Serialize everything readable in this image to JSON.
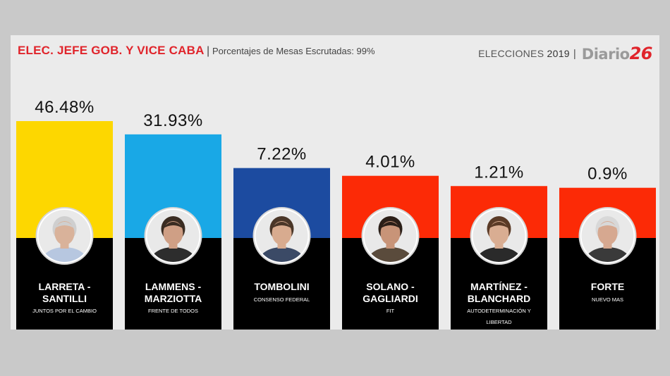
{
  "header": {
    "title": "ELEC. JEFE GOB. Y VICE CABA",
    "separator": "|",
    "subtitle": "Porcentajes de Mesas Escrutadas: 99%",
    "elections_label": "ELECCIONES",
    "elections_year": "2019",
    "logo_text": "Diario",
    "logo_number": "26"
  },
  "chart_data": {
    "type": "bar",
    "title": "ELEC. JEFE GOB. Y VICE CABA",
    "subtitle": "Porcentajes de Mesas Escrutadas: 99%",
    "ylim": [
      0,
      46.48
    ],
    "grid": false,
    "categories": [
      "LARRETA - SANTILLI",
      "LAMMENS - MARZIOTTA",
      "TOMBOLINI",
      "SOLANO - GAGLIARDI",
      "MARTÍNEZ - BLANCHARD",
      "FORTE"
    ],
    "values": [
      46.48,
      31.93,
      7.22,
      4.01,
      1.21,
      0.9
    ],
    "value_labels": [
      "46.48%",
      "31.93%",
      "7.22%",
      "4.01%",
      "1.21%",
      "0.9%"
    ],
    "candidates": [
      {
        "line1": "LARRETA -",
        "line2": "SANTILLI",
        "party": [
          "JUNTOS POR EL CAMBIO"
        ],
        "color": "#fdd700",
        "bottom": "#000000",
        "skin": "#d9b29a",
        "hair": "#cfcfcf",
        "shirt": "#b7c7e0"
      },
      {
        "line1": "LAMMENS -",
        "line2": "MARZIOTTA",
        "party": [
          "FRENTE DE TODOS"
        ],
        "color": "#19a8e6",
        "bottom": "#000000",
        "skin": "#cf9f85",
        "hair": "#3a2c22",
        "shirt": "#2d2d2d"
      },
      {
        "line1": "TOMBOLINI",
        "line2": "",
        "party": [
          "CONSENSO FEDERAL"
        ],
        "color": "#1c4ba0",
        "bottom": "#000000",
        "skin": "#d8ab8f",
        "hair": "#4a3628",
        "shirt": "#3b4a66"
      },
      {
        "line1": "SOLANO -",
        "line2": "GAGLIARDI",
        "party": [
          "FIT"
        ],
        "color": "#fc2a06",
        "bottom": "#000000",
        "skin": "#c89478",
        "hair": "#2b1f18",
        "shirt": "#5a4b3c"
      },
      {
        "line1": "MARTÍNEZ -",
        "line2": "BLANCHARD",
        "party": [
          "AUTODETERMINACIÓN Y",
          "LIBERTAD"
        ],
        "color": "#fc2a06",
        "bottom": "#000000",
        "skin": "#d9ad92",
        "hair": "#5a3a26",
        "shirt": "#2a2a2a"
      },
      {
        "line1": "FORTE",
        "line2": "",
        "party": [
          "NUEVO MAS"
        ],
        "color": "#fc2a06",
        "bottom": "#000000",
        "skin": "#d6a890",
        "hair": "#d8d8d8",
        "shirt": "#3a3a3a"
      }
    ]
  }
}
